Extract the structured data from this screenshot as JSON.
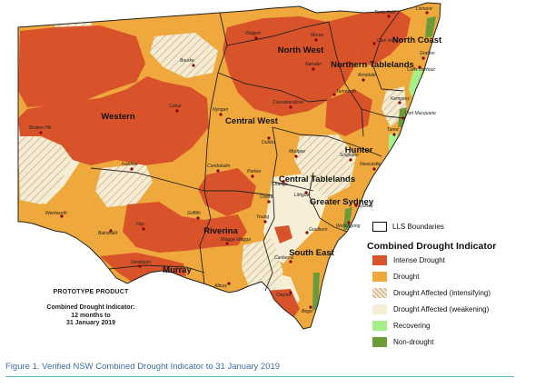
{
  "regions": [
    "North Coast",
    "North West",
    "Northern Tablelands",
    "Western",
    "Central West",
    "Hunter",
    "Central Tablelands",
    "Greater Sydney",
    "Riverina",
    "Murray",
    "South East"
  ],
  "towns": [
    "Tenterfield",
    "Lismore",
    "Moree",
    "Glen Innes",
    "Grafton",
    "Bourke",
    "Walgett",
    "Narrabri",
    "Armidale",
    "Coffs Harbour",
    "Kempsey",
    "Port Macquarie",
    "Tamworth",
    "Cobar",
    "Nyngan",
    "Coonabarabran",
    "Taree",
    "Broken Hill",
    "Dubbo",
    "Mudgee",
    "Singleton",
    "Newcastle",
    "Ivanhoe",
    "Condobolin",
    "Parkes",
    "Orange",
    "Lithgow",
    "Sydney",
    "Cowra",
    "Wollongong",
    "Wentworth",
    "Balranald",
    "Hay",
    "Griffith",
    "Young",
    "Goulburn",
    "Wagga Wagga",
    "Deniliquin",
    "Canberra",
    "Albury",
    "Cooma",
    "Bega"
  ],
  "legend": {
    "boundaries_label": "LLS Boundaries",
    "title": "Combined Drought Indicator",
    "items": [
      {
        "label": "Intense Drought",
        "color": "#d9532a"
      },
      {
        "label": "Drought",
        "color": "#eea83b"
      },
      {
        "label": "Drought Affected (intensifying)",
        "color": "#ece3cc"
      },
      {
        "label": "Drought Affected (weakening)",
        "color": "#f7eed7"
      },
      {
        "label": "Recovering",
        "color": "#a6f08a"
      },
      {
        "label": "Non-drought",
        "color": "#6d9b3a"
      }
    ]
  },
  "prototype": {
    "title": "PROTOTYPE PRODUCT",
    "line1": "Combined Drought Indicator:",
    "line2": "12 months to",
    "line3": "31 January 2019"
  },
  "caption": "Figure 1. Verified NSW Combined Drought Indicator to 31 January 2019"
}
